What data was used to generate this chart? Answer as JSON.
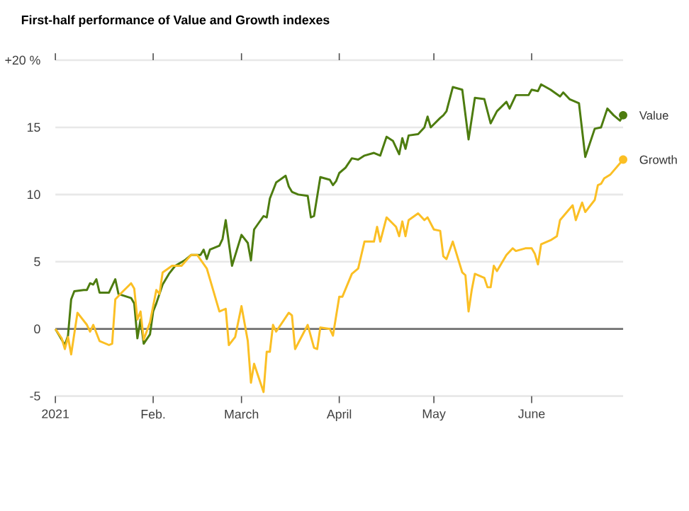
{
  "chart_data": {
    "type": "line",
    "title": "First-half performance of Value and Growth indexes",
    "x": [
      "2021-01-01",
      "2021-01-04",
      "2021-01-05",
      "2021-01-06",
      "2021-01-07",
      "2021-01-10",
      "2021-01-11",
      "2021-01-12",
      "2021-01-13",
      "2021-01-14",
      "2021-01-15",
      "2021-01-18",
      "2021-01-20",
      "2021-01-21",
      "2021-01-25",
      "2021-01-26",
      "2021-01-27",
      "2021-01-28",
      "2021-01-29",
      "2021-01-31",
      "2021-02-01",
      "2021-02-02",
      "2021-02-04",
      "2021-02-06",
      "2021-02-08",
      "2021-02-11",
      "2021-02-13",
      "2021-02-16",
      "2021-02-17",
      "2021-02-18",
      "2021-02-19",
      "2021-02-22",
      "2021-02-23",
      "2021-02-24",
      "2021-02-26",
      "2021-03-01",
      "2021-03-03",
      "2021-03-04",
      "2021-03-05",
      "2021-03-08",
      "2021-03-09",
      "2021-03-10",
      "2021-03-12",
      "2021-03-15",
      "2021-03-16",
      "2021-03-17",
      "2021-03-19",
      "2021-03-22",
      "2021-03-23",
      "2021-03-24",
      "2021-03-26",
      "2021-03-29",
      "2021-03-30",
      "2021-03-31",
      "2021-04-01",
      "2021-04-03",
      "2021-04-05",
      "2021-04-07",
      "2021-04-09",
      "2021-04-12",
      "2021-04-14",
      "2021-04-16",
      "2021-04-18",
      "2021-04-20",
      "2021-04-21",
      "2021-04-22",
      "2021-04-23",
      "2021-04-26",
      "2021-04-28",
      "2021-04-29",
      "2021-04-30",
      "2021-05-03",
      "2021-05-04",
      "2021-05-05",
      "2021-05-07",
      "2021-05-10",
      "2021-05-12",
      "2021-05-14",
      "2021-05-17",
      "2021-05-19",
      "2021-05-21",
      "2021-05-24",
      "2021-05-25",
      "2021-05-27",
      "2021-05-31",
      "2021-06-01",
      "2021-06-03",
      "2021-06-04",
      "2021-06-07",
      "2021-06-10",
      "2021-06-11",
      "2021-06-13",
      "2021-06-16",
      "2021-06-18",
      "2021-06-21",
      "2021-06-23",
      "2021-06-25",
      "2021-06-27",
      "2021-06-29",
      "2021-06-30"
    ],
    "series": [
      {
        "name": "Value",
        "color": "#4d7c0f",
        "values": [
          0,
          -1.2,
          -0.5,
          2.2,
          2.8,
          2.9,
          2.9,
          3.4,
          3.3,
          3.7,
          2.7,
          2.7,
          3.7,
          2.6,
          2.3,
          1.9,
          -0.7,
          0.7,
          -1.1,
          -0.4,
          1.3,
          1.9,
          3.3,
          4.1,
          4.7,
          5.1,
          5.5,
          5.5,
          5.9,
          5.2,
          5.9,
          6.2,
          6.7,
          8.1,
          4.7,
          7.0,
          6.4,
          5.1,
          7.4,
          8.4,
          8.3,
          9.7,
          10.9,
          11.4,
          10.6,
          10.2,
          10.0,
          9.9,
          8.3,
          8.4,
          11.3,
          11.1,
          10.7,
          11.0,
          11.6,
          12.0,
          12.7,
          12.6,
          12.9,
          13.1,
          12.9,
          14.3,
          14.0,
          13.0,
          14.2,
          13.4,
          14.4,
          14.5,
          15.0,
          15.8,
          15.0,
          15.7,
          15.9,
          16.2,
          18.0,
          17.8,
          14.1,
          17.2,
          17.1,
          15.3,
          16.2,
          16.9,
          16.4,
          17.4,
          17.4,
          17.8,
          17.7,
          18.2,
          17.8,
          17.3,
          17.6,
          17.1,
          16.8,
          12.8,
          14.9,
          15.0,
          16.4,
          15.9,
          15.5,
          15.9
        ]
      },
      {
        "name": "Growth",
        "color": "#fbbf24",
        "x": [
          "2021-01-01",
          "2021-01-03",
          "2021-01-04",
          "2021-01-05",
          "2021-01-06",
          "2021-01-08",
          "2021-01-11",
          "2021-01-12",
          "2021-01-13",
          "2021-01-15",
          "2021-01-18",
          "2021-01-19",
          "2021-01-20",
          "2021-01-22",
          "2021-01-25",
          "2021-01-26",
          "2021-01-27",
          "2021-01-28",
          "2021-01-29",
          "2021-01-31",
          "2021-02-02",
          "2021-02-03",
          "2021-02-04",
          "2021-02-07",
          "2021-02-09",
          "2021-02-10",
          "2021-02-13",
          "2021-02-15",
          "2021-02-18",
          "2021-02-20",
          "2021-02-22",
          "2021-02-24",
          "2021-02-25",
          "2021-02-27",
          "2021-03-01",
          "2021-03-03",
          "2021-03-04",
          "2021-03-05",
          "2021-03-08",
          "2021-03-09",
          "2021-03-10",
          "2021-03-11",
          "2021-03-12",
          "2021-03-16",
          "2021-03-17",
          "2021-03-18",
          "2021-03-22",
          "2021-03-24",
          "2021-03-25",
          "2021-03-26",
          "2021-03-29",
          "2021-03-30",
          "2021-04-01",
          "2021-04-02",
          "2021-04-05",
          "2021-04-07",
          "2021-04-09",
          "2021-04-12",
          "2021-04-13",
          "2021-04-14",
          "2021-04-16",
          "2021-04-19",
          "2021-04-20",
          "2021-04-21",
          "2021-04-22",
          "2021-04-23",
          "2021-04-26",
          "2021-04-28",
          "2021-04-29",
          "2021-05-01",
          "2021-05-03",
          "2021-05-04",
          "2021-05-05",
          "2021-05-07",
          "2021-05-10",
          "2021-05-11",
          "2021-05-12",
          "2021-05-13",
          "2021-05-14",
          "2021-05-17",
          "2021-05-18",
          "2021-05-19",
          "2021-05-20",
          "2021-05-21",
          "2021-05-24",
          "2021-05-26",
          "2021-05-27",
          "2021-05-30",
          "2021-06-01",
          "2021-06-02",
          "2021-06-03",
          "2021-06-04",
          "2021-06-07",
          "2021-06-09",
          "2021-06-10",
          "2021-06-14",
          "2021-06-15",
          "2021-06-17",
          "2021-06-18",
          "2021-06-21",
          "2021-06-22",
          "2021-06-23",
          "2021-06-24",
          "2021-06-26",
          "2021-06-30"
        ],
        "values": [
          0,
          -0.7,
          -1.5,
          -0.6,
          -1.9,
          1.2,
          0.3,
          -0.2,
          0.3,
          -0.9,
          -1.2,
          -1.1,
          2.2,
          2.7,
          3.4,
          3.0,
          0.7,
          1.3,
          -0.8,
          0.5,
          2.9,
          2.6,
          4.2,
          4.7,
          4.7,
          4.7,
          5.5,
          5.5,
          4.5,
          2.9,
          1.3,
          1.5,
          -1.2,
          -0.6,
          1.7,
          -0.9,
          -4.0,
          -2.6,
          -4.7,
          -1.7,
          -1.7,
          0.3,
          -0.2,
          1.2,
          1.0,
          -1.5,
          0.3,
          -1.4,
          -1.5,
          0.1,
          0.0,
          -0.5,
          2.4,
          2.4,
          4.1,
          4.5,
          6.5,
          6.5,
          7.6,
          6.5,
          8.3,
          7.6,
          6.9,
          8.0,
          6.9,
          8.1,
          8.6,
          8.1,
          8.3,
          7.4,
          7.3,
          5.4,
          5.2,
          6.5,
          4.2,
          4.0,
          1.3,
          2.9,
          4.1,
          3.8,
          3.1,
          3.1,
          4.7,
          4.3,
          5.5,
          6.0,
          5.8,
          6.0,
          6.0,
          5.6,
          4.8,
          6.3,
          6.6,
          6.9,
          8.1,
          9.2,
          8.1,
          9.4,
          8.7,
          9.6,
          10.7,
          10.8,
          11.2,
          11.5,
          12.6
        ]
      }
    ],
    "xlim": [
      "2021-01-01",
      "2021-06-30"
    ],
    "xticks": [
      {
        "value": "2021-01-01",
        "label": "2021"
      },
      {
        "value": "2021-02-01",
        "label": "Feb."
      },
      {
        "value": "2021-03-01",
        "label": "March"
      },
      {
        "value": "2021-04-01",
        "label": "April"
      },
      {
        "value": "2021-05-01",
        "label": "May"
      },
      {
        "value": "2021-06-01",
        "label": "June"
      }
    ],
    "ylim": [
      -5,
      20
    ],
    "yticks": [
      -5,
      0,
      5,
      10,
      15,
      {
        "value": 20,
        "label": "+20 %"
      }
    ],
    "ref_lines": [
      {
        "axis": "y",
        "value": 0,
        "color": "#666666"
      }
    ],
    "grid": "y",
    "legend": false,
    "line_style": "solid"
  }
}
